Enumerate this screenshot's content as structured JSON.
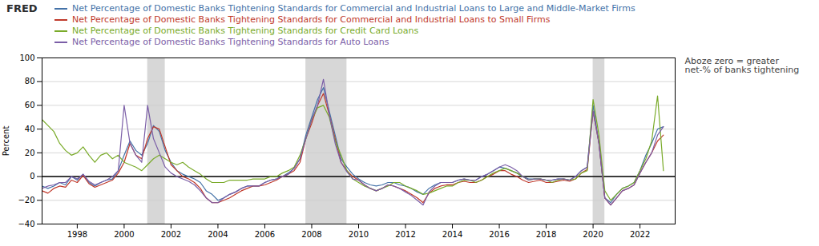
{
  "chart_data": {
    "type": "line",
    "title": "FRED",
    "ylabel": "Percent",
    "annotation": "Aboze zero = greater\nnet-% of banks tightening",
    "legend": "top",
    "grid": true,
    "xlim": [
      1996.5,
      2023.5
    ],
    "xticks": [
      1998,
      2000,
      2002,
      2004,
      2006,
      2008,
      2010,
      2012,
      2014,
      2016,
      2018,
      2020,
      2022
    ],
    "ylim": [
      -40,
      100
    ],
    "yticks": [
      -40,
      -20,
      0,
      20,
      40,
      60,
      80,
      100
    ],
    "recession_shades": [
      [
        2001.0,
        2001.75
      ],
      [
        2007.75,
        2009.5
      ],
      [
        2020.0,
        2020.5
      ]
    ],
    "x": [
      1996.5,
      1996.75,
      1997.0,
      1997.25,
      1997.5,
      1997.75,
      1998.0,
      1998.25,
      1998.5,
      1998.75,
      1999.0,
      1999.25,
      1999.5,
      1999.75,
      2000.0,
      2000.25,
      2000.5,
      2000.75,
      2001.0,
      2001.25,
      2001.5,
      2001.75,
      2002.0,
      2002.25,
      2002.5,
      2002.75,
      2003.0,
      2003.25,
      2003.5,
      2003.75,
      2004.0,
      2004.25,
      2004.5,
      2004.75,
      2005.0,
      2005.25,
      2005.5,
      2005.75,
      2006.0,
      2006.25,
      2006.5,
      2006.75,
      2007.0,
      2007.25,
      2007.5,
      2007.75,
      2008.0,
      2008.25,
      2008.5,
      2008.75,
      2009.0,
      2009.25,
      2009.5,
      2009.75,
      2010.0,
      2010.25,
      2010.5,
      2010.75,
      2011.0,
      2011.25,
      2011.5,
      2011.75,
      2012.0,
      2012.25,
      2012.5,
      2012.75,
      2013.0,
      2013.25,
      2013.5,
      2013.75,
      2014.0,
      2014.25,
      2014.5,
      2014.75,
      2015.0,
      2015.25,
      2015.5,
      2015.75,
      2016.0,
      2016.25,
      2016.5,
      2016.75,
      2017.0,
      2017.25,
      2017.5,
      2017.75,
      2018.0,
      2018.25,
      2018.5,
      2018.75,
      2019.0,
      2019.25,
      2019.5,
      2019.75,
      2020.0,
      2020.25,
      2020.5,
      2020.75,
      2021.0,
      2021.25,
      2021.5,
      2021.75,
      2022.0,
      2022.25,
      2022.5,
      2022.75,
      2023.0
    ],
    "series": [
      {
        "name": "Net Percentage of Domestic Banks Tightening Standards for Commercial and Industrial Loans to Large and Middle-Market Firms",
        "color": "#4472a8",
        "values": [
          -8,
          -10,
          -8,
          -5,
          -7,
          0,
          -3,
          2,
          -5,
          -8,
          -5,
          -3,
          -2,
          5,
          18,
          30,
          22,
          18,
          28,
          43,
          38,
          22,
          12,
          5,
          2,
          0,
          -2,
          -5,
          -12,
          -15,
          -20,
          -18,
          -15,
          -13,
          -10,
          -8,
          -8,
          -8,
          -5,
          -3,
          -2,
          0,
          3,
          7,
          15,
          35,
          50,
          65,
          75,
          55,
          35,
          15,
          8,
          2,
          -2,
          -5,
          -7,
          -8,
          -7,
          -5,
          -5,
          -7,
          -8,
          -10,
          -13,
          -15,
          -10,
          -7,
          -5,
          -5,
          -5,
          -3,
          -2,
          -3,
          -3,
          0,
          2,
          5,
          8,
          7,
          5,
          3,
          0,
          -2,
          -2,
          -2,
          -3,
          -3,
          -2,
          -2,
          -3,
          0,
          5,
          8,
          60,
          28,
          -18,
          -22,
          -15,
          -10,
          -8,
          -5,
          5,
          18,
          28,
          40,
          42
        ]
      },
      {
        "name": "Net Percentage of Domestic Banks Tightening Standards for Commercial and Industrial Loans to Small Firms",
        "color": "#c0392b",
        "values": [
          -12,
          -14,
          -10,
          -8,
          -9,
          -3,
          -5,
          1,
          -6,
          -9,
          -7,
          -5,
          -3,
          3,
          12,
          28,
          18,
          15,
          32,
          42,
          40,
          25,
          10,
          5,
          0,
          -2,
          -5,
          -10,
          -18,
          -22,
          -22,
          -20,
          -18,
          -15,
          -12,
          -10,
          -8,
          -8,
          -7,
          -5,
          -3,
          0,
          2,
          5,
          12,
          32,
          45,
          60,
          70,
          52,
          32,
          12,
          5,
          0,
          -3,
          -7,
          -10,
          -12,
          -10,
          -7,
          -8,
          -10,
          -12,
          -15,
          -18,
          -22,
          -14,
          -10,
          -8,
          -7,
          -7,
          -5,
          -4,
          -5,
          -5,
          -3,
          0,
          2,
          5,
          5,
          2,
          0,
          -3,
          -5,
          -4,
          -3,
          -5,
          -5,
          -4,
          -3,
          -4,
          -2,
          3,
          6,
          55,
          28,
          -18,
          -24,
          -18,
          -12,
          -10,
          -7,
          3,
          12,
          20,
          30,
          35
        ]
      },
      {
        "name": "Net Percentage of Domestic Banks Tightening Standards for Credit Card Loans",
        "color": "#7aab2a",
        "values": [
          48,
          43,
          38,
          28,
          22,
          18,
          20,
          25,
          18,
          12,
          18,
          20,
          15,
          18,
          12,
          10,
          8,
          5,
          10,
          15,
          18,
          15,
          12,
          10,
          12,
          8,
          5,
          2,
          -2,
          -5,
          -5,
          -5,
          -3,
          -3,
          -3,
          -3,
          -2,
          -2,
          -2,
          0,
          0,
          3,
          5,
          8,
          18,
          32,
          48,
          58,
          60,
          50,
          30,
          18,
          5,
          -2,
          -5,
          -8,
          -10,
          -12,
          -10,
          -8,
          -5,
          -5,
          -8,
          -10,
          -12,
          -15,
          -14,
          -12,
          -10,
          -8,
          -8,
          -5,
          -3,
          -3,
          -5,
          -3,
          0,
          3,
          5,
          7,
          5,
          3,
          0,
          -3,
          -2,
          -2,
          -3,
          -5,
          -3,
          -2,
          -3,
          -2,
          3,
          5,
          65,
          35,
          -12,
          -20,
          -15,
          -10,
          -8,
          -5,
          5,
          15,
          30,
          68,
          5
        ]
      },
      {
        "name": "Net Percentage of Domestic Banks Tightening Standards for Auto Loans",
        "color": "#7B5EA7",
        "values": [
          -10,
          -8,
          -7,
          -5,
          -5,
          0,
          -2,
          2,
          -4,
          -7,
          -5,
          -3,
          0,
          5,
          60,
          28,
          18,
          12,
          60,
          32,
          20,
          8,
          3,
          0,
          -2,
          -4,
          -7,
          -12,
          -18,
          -22,
          -22,
          -18,
          -15,
          -13,
          -10,
          -8,
          -8,
          -8,
          -5,
          -3,
          -2,
          0,
          2,
          7,
          15,
          32,
          48,
          60,
          82,
          52,
          28,
          12,
          4,
          -2,
          -3,
          -7,
          -10,
          -12,
          -10,
          -7,
          -8,
          -10,
          -13,
          -16,
          -20,
          -24,
          -13,
          -8,
          -5,
          -5,
          -5,
          -3,
          -2,
          -3,
          -3,
          0,
          2,
          5,
          8,
          10,
          8,
          5,
          0,
          -3,
          -2,
          -2,
          -3,
          -3,
          -2,
          -2,
          -3,
          0,
          5,
          8,
          55,
          28,
          -18,
          -24,
          -18,
          -12,
          -10,
          -7,
          3,
          12,
          20,
          35,
          42
        ]
      }
    ]
  }
}
